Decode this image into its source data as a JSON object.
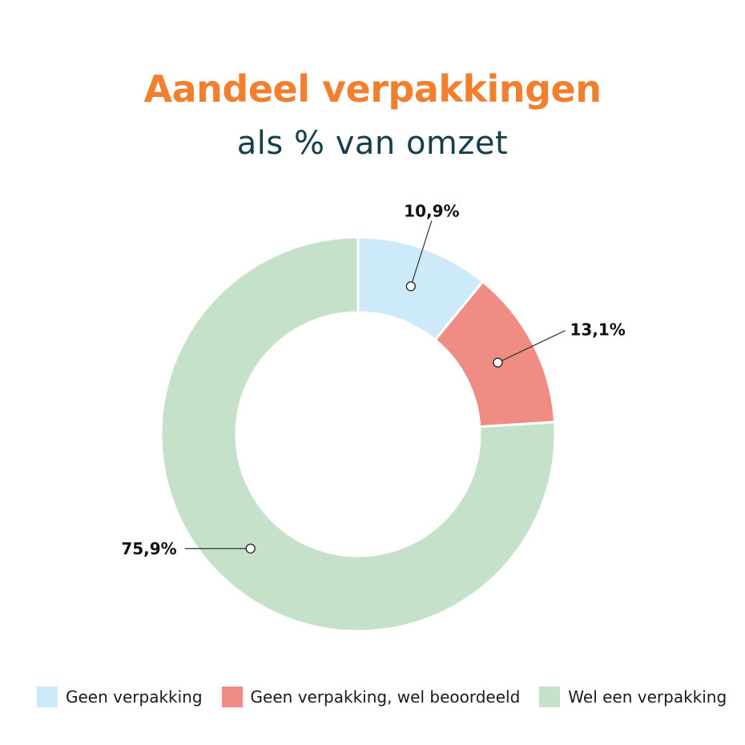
{
  "colors": {
    "title": "#f07f30",
    "subtitle": "#153f4a",
    "label": "#111111",
    "leader": "#333333",
    "background": "#ffffff"
  },
  "chart_data": {
    "type": "pie",
    "donut": true,
    "title": "Aandeel verpakkingen",
    "subtitle": "als % van omzet",
    "start_angle_deg": 0,
    "direction": "clockwise",
    "legend_position": "bottom",
    "slices": [
      {
        "name": "Geen verpakking",
        "value": 10.9,
        "label": "10,9%",
        "color": "#cdeafb"
      },
      {
        "name": "Geen verpakking, wel beoordeeld",
        "value": 13.1,
        "label": "13,1%",
        "color": "#ef8d85"
      },
      {
        "name": "Wel een verpakking",
        "value": 75.9,
        "label": "75,9%",
        "color": "#c6e1c9"
      }
    ]
  }
}
